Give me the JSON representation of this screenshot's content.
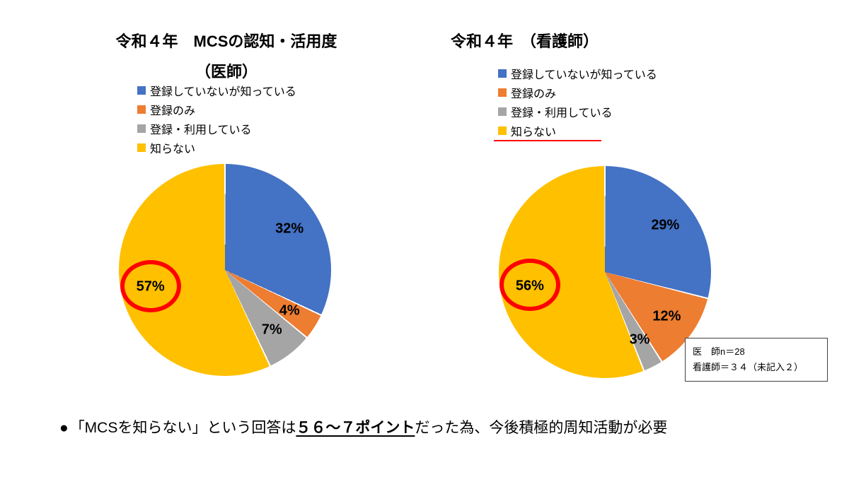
{
  "chart_data": [
    {
      "type": "pie",
      "title": "令和４年　MCSの認知・活用度",
      "subtitle": "（医師）",
      "categories": [
        "登録していないが知っている",
        "登録のみ",
        "登録・利用している",
        "知らない"
      ],
      "values": [
        32,
        4,
        7,
        57
      ],
      "labels": [
        "32%",
        "4%",
        "7%",
        "57%"
      ],
      "colors": [
        "#4472C4",
        "#ED7D31",
        "#A5A5A5",
        "#FFC000"
      ],
      "start_angle_deg": 0,
      "direction": "clockwise",
      "legend_position": "top-left",
      "annotations": [
        "red circle highlighting 57% (知らない) slice"
      ]
    },
    {
      "type": "pie",
      "title": "令和４年　（看護師）",
      "subtitle": "",
      "categories": [
        "登録していないが知っている",
        "登録のみ",
        "登録・利用している",
        "知らない"
      ],
      "values": [
        29,
        12,
        3,
        56
      ],
      "labels": [
        "29%",
        "12%",
        "3%",
        "56%"
      ],
      "colors": [
        "#4472C4",
        "#ED7D31",
        "#A5A5A5",
        "#FFC000"
      ],
      "start_angle_deg": 0,
      "direction": "clockwise",
      "legend_position": "top-left",
      "annotations": [
        "red circle highlighting 56% (知らない) slice",
        "red underline under 知らない legend item"
      ]
    }
  ],
  "note_box": {
    "line1": "医　師n＝28",
    "line2": "看護師＝３４（未記入２）"
  },
  "footer": {
    "bullet": "●",
    "text_before": "「MCSを知らない」という回答は",
    "highlight": "５６～７ポイント",
    "text_after": "だった為、今後積極的周知活動が必要"
  }
}
